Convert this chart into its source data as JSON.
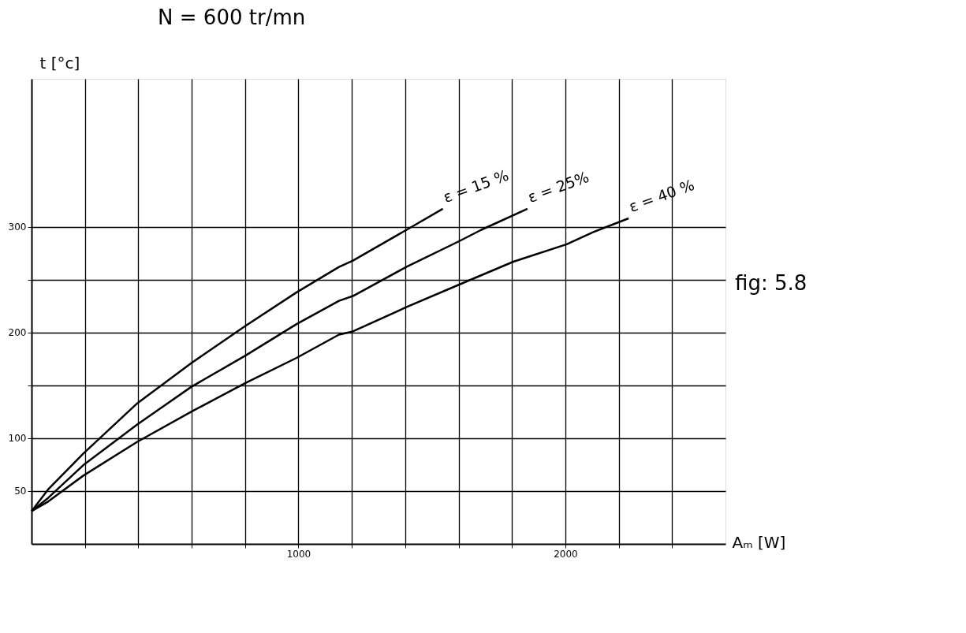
{
  "chart_data": {
    "type": "line",
    "title": "N = 600  tr/mn",
    "xlabel": "Aₘ   [W]",
    "ylabel": "t [°c]",
    "annotations": [
      "fig: 5.8"
    ],
    "xlim": [
      0,
      2600
    ],
    "ylim": [
      0,
      440
    ],
    "xticks": [
      {
        "value": 200,
        "label": null
      },
      {
        "value": 400,
        "label": null
      },
      {
        "value": 600,
        "label": null
      },
      {
        "value": 800,
        "label": null
      },
      1000,
      {
        "value": 1200,
        "label": null
      },
      {
        "value": 1400,
        "label": null
      },
      {
        "value": 1600,
        "label": null
      },
      {
        "value": 1800,
        "label": null
      },
      2000,
      {
        "value": 2200,
        "label": null
      },
      {
        "value": 2400,
        "label": null
      }
    ],
    "yticks": [
      50,
      100,
      {
        "value": 150,
        "label": null
      },
      200,
      {
        "value": 250,
        "label": null
      },
      300
    ],
    "grid": true,
    "marker": "none",
    "line_style": "solid",
    "series": [
      {
        "name": "ε = 15 %",
        "color": "#000000",
        "x": [
          0,
          62,
          194,
          396,
          598,
          800,
          993,
          1152,
          1204,
          1404,
          1541
        ],
        "values": [
          31,
          51.5,
          85.5,
          133,
          171,
          206,
          238,
          262,
          268,
          297,
          317
        ]
      },
      {
        "name": "ε = 25%",
        "color": "#000000",
        "x": [
          0,
          62,
          194,
          396,
          598,
          800,
          993,
          1152,
          1204,
          1404,
          1599,
          1684,
          1858
        ],
        "values": [
          31,
          43.5,
          74.5,
          113,
          148.5,
          178,
          208,
          230,
          234.5,
          262,
          286,
          297,
          317
        ]
      },
      {
        "name": "ε = 40 %",
        "color": "#000000",
        "x": [
          0,
          62,
          194,
          396,
          598,
          800,
          993,
          1152,
          1204,
          1404,
          1599,
          1805,
          2005,
          2105,
          2237
        ],
        "values": [
          31,
          40,
          64.6,
          96.6,
          125,
          152,
          176,
          198,
          201,
          224,
          245,
          267,
          283.5,
          295,
          308
        ]
      }
    ]
  }
}
